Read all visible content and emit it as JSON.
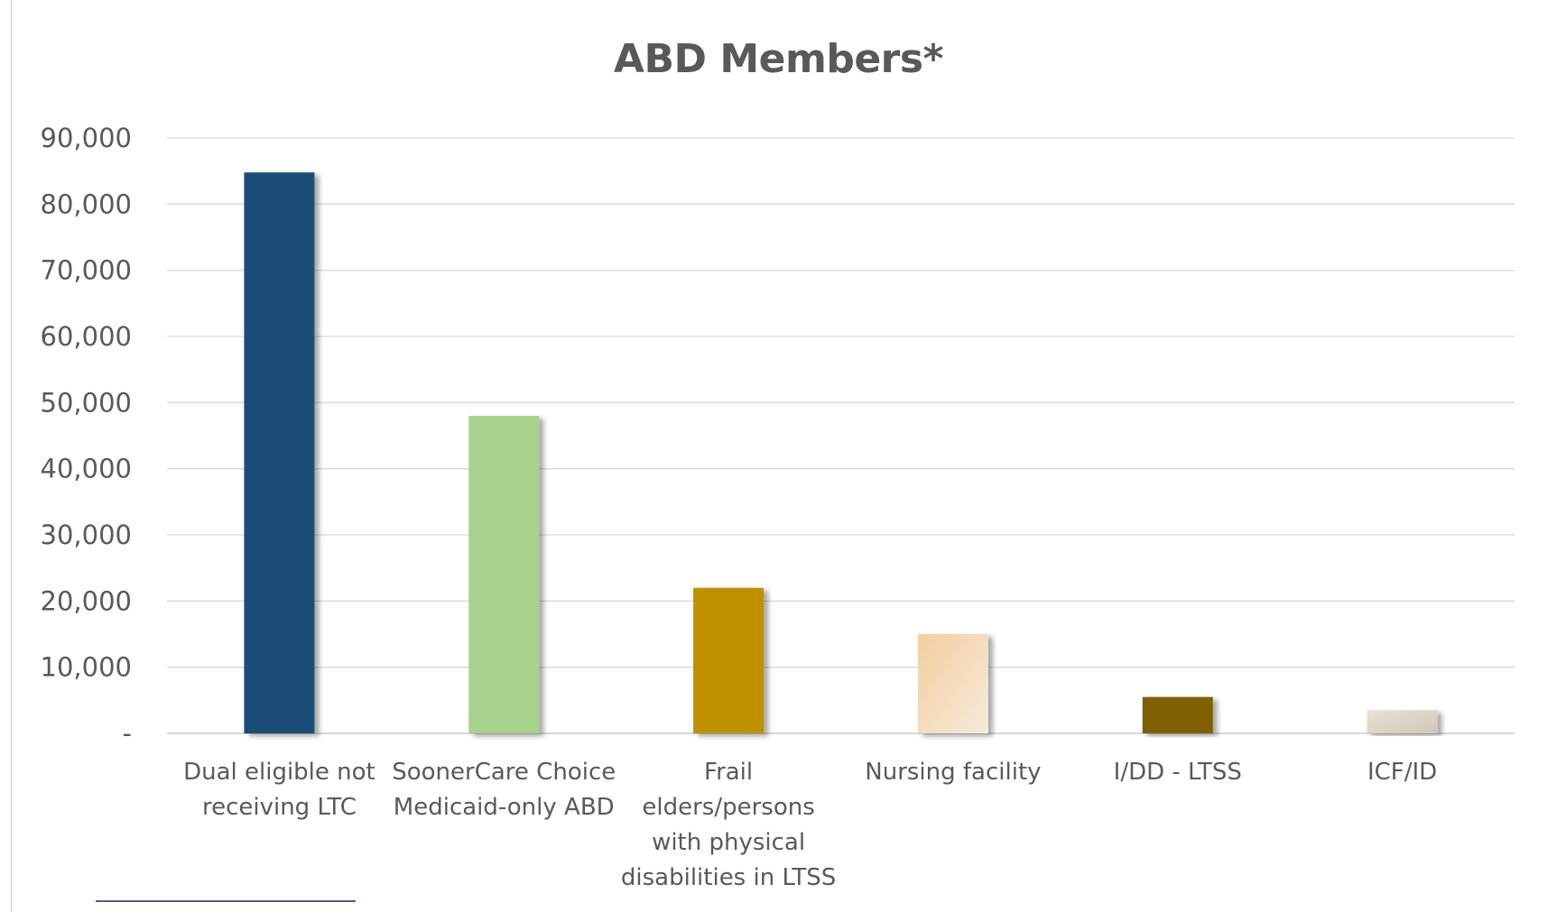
{
  "chart_data": {
    "type": "bar",
    "title": "ABD Members*",
    "xlabel": "",
    "ylabel": "",
    "ylim": [
      0,
      90000
    ],
    "yticks": [
      {
        "value": 0,
        "label": "-"
      },
      {
        "value": 10000,
        "label": "10,000"
      },
      {
        "value": 20000,
        "label": "20,000"
      },
      {
        "value": 30000,
        "label": "30,000"
      },
      {
        "value": 40000,
        "label": "40,000"
      },
      {
        "value": 50000,
        "label": "50,000"
      },
      {
        "value": 60000,
        "label": "60,000"
      },
      {
        "value": 70000,
        "label": "70,000"
      },
      {
        "value": 80000,
        "label": "80,000"
      },
      {
        "value": 90000,
        "label": "90,000"
      }
    ],
    "grid": true,
    "legend": "none",
    "categories": [
      [
        "Dual eligible not",
        "receiving LTC"
      ],
      [
        "SoonerCare Choice",
        "Medicaid-only ABD"
      ],
      [
        "Frail",
        "elders/persons",
        "with physical",
        "disabilities in LTSS"
      ],
      [
        "Nursing facility"
      ],
      [
        "I/DD - LTSS"
      ],
      [
        "ICF/ID"
      ]
    ],
    "values": [
      84800,
      48000,
      22000,
      15000,
      5500,
      3500
    ],
    "colors": [
      [
        "#1f4e79",
        "#1f4e79"
      ],
      [
        "#a9d18e",
        "#a9d18e"
      ],
      [
        "#bf9000",
        "#bf9000"
      ],
      [
        "#f2ce9f",
        "#f7ead9"
      ],
      [
        "#7f6000",
        "#7f6000"
      ],
      [
        "#e7e1d6",
        "#cfc7b8"
      ]
    ]
  }
}
